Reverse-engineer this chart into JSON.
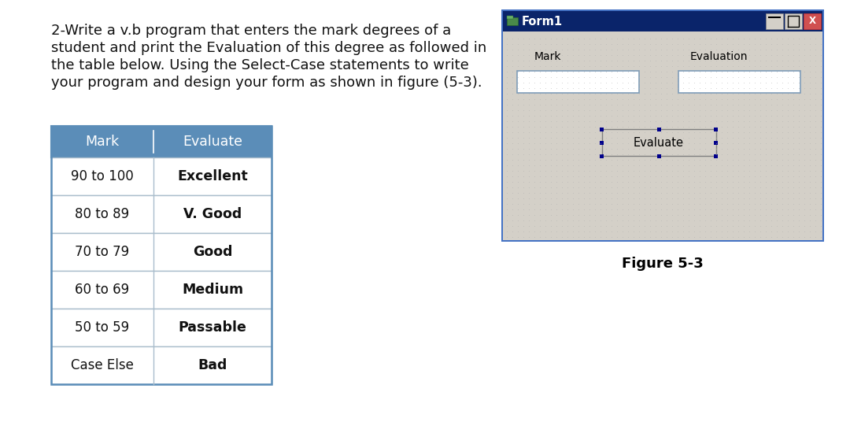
{
  "title_text_lines": [
    "2-Write a v.b program that enters the mark degrees of a",
    "student and print the Evaluation of this degree as followed in",
    "the table below. Using the Select-Case statements to write",
    "your program and design your form as shown in figure (5-3)."
  ],
  "table_header": [
    "Mark",
    "Evaluate"
  ],
  "table_rows": [
    [
      "90 to 100",
      "Excellent"
    ],
    [
      "80 to 89",
      "V. Good"
    ],
    [
      "70 to 79",
      "Good"
    ],
    [
      "60 to 69",
      "Medium"
    ],
    [
      "50 to 59",
      "Passable"
    ],
    [
      "Case Else",
      "Bad"
    ]
  ],
  "header_bg": "#5b8db8",
  "header_fg": "#ffffff",
  "table_border": "#5b8db8",
  "table_row_border": "#aabdcc",
  "table_text_color": "#111111",
  "bg_color": "#ffffff",
  "figure_caption": "Figure 5-3",
  "form_title": "Form1",
  "form_labels": [
    "Mark",
    "Evaluation"
  ],
  "form_button": "Evaluate",
  "form_bg": "#d4d0c8",
  "form_titlebar_bg": "#0a246a",
  "form_titlebar_gradient_end": "#3a6ea5",
  "form_titlebar_fg": "#ffffff",
  "form_outer_border": "#4472c4",
  "form_inner_border": "#6699cc",
  "textbox_bg": "#ffffff",
  "textbox_border": "#7f9db9",
  "button_bg": "#d4d0c8",
  "button_border": "#808080",
  "selection_dot_color": "#00008b",
  "titlebar_btn_minimize_bg": "#d4d0c8",
  "titlebar_btn_maximize_bg": "#d4d0c8",
  "titlebar_btn_close_bg": "#d05050",
  "dot_color": "#b0b0b0"
}
